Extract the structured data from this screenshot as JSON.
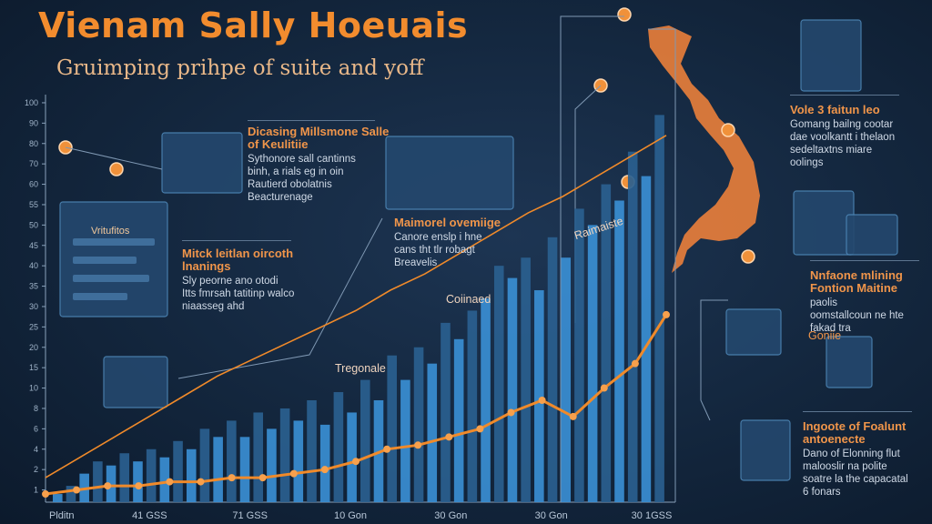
{
  "title": "Vienam Sally Hoeuais",
  "subtitle": "Gruimping prihpe of suite and yoff",
  "colors": {
    "accent": "#f28c2e",
    "bar": "#3a8ed3",
    "bar_dark": "#2a5f8f",
    "line": "#f08a2a",
    "background": "#13263d"
  },
  "blocks": [
    {
      "id": "a",
      "heading": "Dicasing Millsmone Salle of Keulitiie",
      "lines": [
        "Sythonore sall cantinns",
        "binh, a rials eg in oin",
        "Rautierd obolatnis",
        "Beacturenage"
      ]
    },
    {
      "id": "b",
      "heading": "Maimorel ovemiige",
      "lines": [
        "Canore enslp i hne",
        "cans tht tlr robagt",
        "Breavelis"
      ]
    },
    {
      "id": "c",
      "heading": "Mitck leitlan oircoth lnanings",
      "lines": [
        "Sly peorne ano otodi",
        "Itts fmrsah tatitinp walco",
        "niaasseg ahd"
      ]
    },
    {
      "id": "d",
      "heading": "Vole 3 faitun leo",
      "lines": [
        "Gomang bailng cootar",
        "dae voolkantt i thelaon",
        "sedeltaxtns miare",
        "oolings"
      ]
    },
    {
      "id": "e",
      "heading": "Nnfaone mlining Fontion Maitine",
      "lines": [
        "paolis",
        "oomstallcoun ne hte",
        "fakad tra"
      ]
    },
    {
      "id": "f",
      "heading": "Ingoote of Foalunt antoenecte",
      "lines": [
        "Dano of Elonning flut",
        "malooslir na polite",
        "soatre la the capacatal",
        "6 fonars"
      ]
    }
  ],
  "callouts": [
    {
      "id": "tregonale",
      "text": "Tregonale"
    },
    {
      "id": "coiinaed",
      "text": "Coiinaed"
    },
    {
      "id": "peak",
      "text": "Raimaiste"
    },
    {
      "id": "geonie",
      "text": "Goniie"
    }
  ],
  "panel_label": "Vritufitos",
  "chart_data": {
    "type": "bar",
    "title": "Vienam Sally Hoeuais",
    "subtitle": "Gruimping prihpe of suite and yoff",
    "x_tick_labels": [
      "Plditn",
      "41 GSS",
      "71 GSS",
      "10 Gon",
      "30 Gon",
      "30 Gon",
      "30 1GSS"
    ],
    "y_tick_labels": [
      "1",
      "2",
      "4",
      "6",
      "8",
      "10",
      "15",
      "20",
      "25",
      "30",
      "35",
      "40",
      "45",
      "50",
      "55",
      "60",
      "70",
      "80",
      "90",
      "100"
    ],
    "ylim": [
      0,
      100
    ],
    "grid": false,
    "series": [
      {
        "kind": "bar",
        "values": [
          2,
          4,
          7,
          10,
          9,
          12,
          10,
          13,
          11,
          15,
          13,
          18,
          16,
          20,
          16,
          22,
          18,
          23,
          20,
          25,
          19,
          27,
          22,
          30,
          25,
          36,
          30,
          38,
          34,
          44,
          40,
          47,
          50,
          58,
          55,
          60,
          52,
          65,
          60,
          72,
          68,
          78,
          74,
          86,
          80,
          95
        ]
      },
      {
        "kind": "line",
        "values": [
          6,
          11,
          16,
          21,
          26,
          31,
          35,
          39,
          43,
          47,
          52,
          56,
          61,
          66,
          71,
          75,
          80,
          85,
          90
        ]
      },
      {
        "kind": "line",
        "values": [
          2,
          3,
          4,
          4,
          5,
          5,
          6,
          6,
          7,
          8,
          10,
          13,
          14,
          16,
          18,
          22,
          25,
          21,
          28,
          34,
          46
        ]
      }
    ]
  }
}
